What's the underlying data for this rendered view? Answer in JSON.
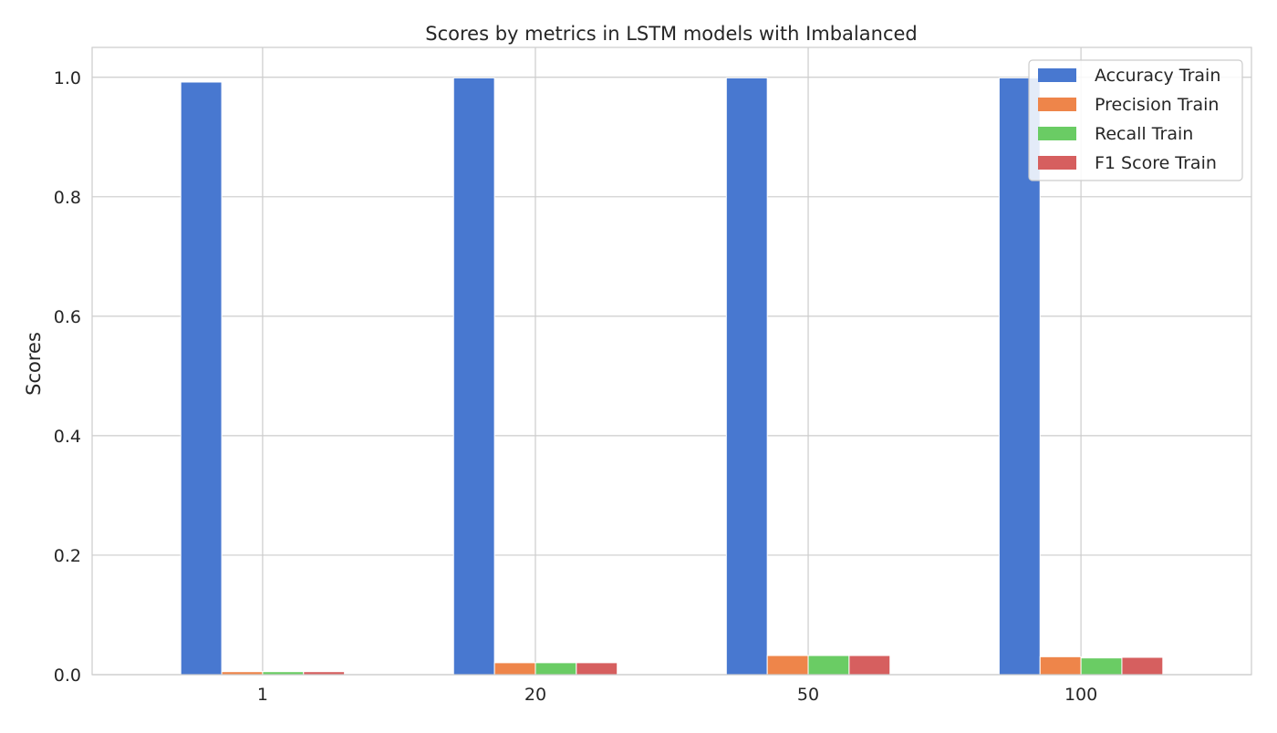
{
  "chart_data": {
    "type": "bar",
    "title": "Scores by metrics in LSTM models with Imbalanced",
    "xlabel": "",
    "ylabel": "Scores",
    "categories": [
      "1",
      "20",
      "50",
      "100"
    ],
    "ylim": [
      0,
      1.05
    ],
    "yticks": [
      0.0,
      0.2,
      0.4,
      0.6,
      0.8,
      1.0
    ],
    "ytick_labels": [
      "0.0",
      "0.2",
      "0.4",
      "0.6",
      "0.8",
      "1.0"
    ],
    "grid": true,
    "legend_position": "top-right",
    "series": [
      {
        "name": "Accuracy Train",
        "color": "#4878d0",
        "values": [
          0.992,
          0.999,
          0.999,
          0.999
        ]
      },
      {
        "name": "Precision Train",
        "color": "#ee854a",
        "values": [
          0.005,
          0.02,
          0.032,
          0.03
        ]
      },
      {
        "name": "Recall Train",
        "color": "#6acc64",
        "values": [
          0.005,
          0.02,
          0.032,
          0.028
        ]
      },
      {
        "name": "F1 Score Train",
        "color": "#d65f5f",
        "values": [
          0.005,
          0.02,
          0.032,
          0.029
        ]
      }
    ]
  }
}
